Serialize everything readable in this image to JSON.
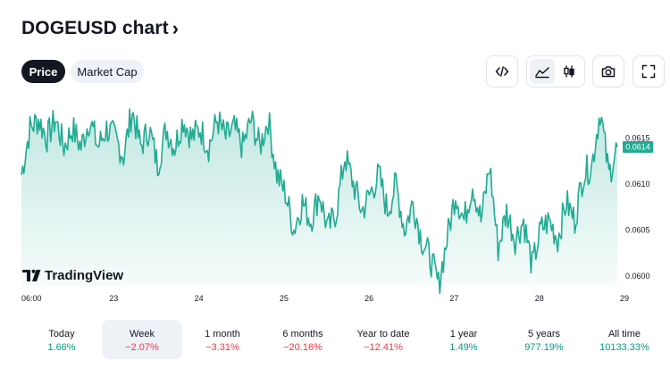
{
  "header": {
    "title": "DOGEUSD chart",
    "chevron": "›"
  },
  "tabs": [
    {
      "label": "Price",
      "active": true
    },
    {
      "label": "Market Cap",
      "active": false
    }
  ],
  "toolbar": {
    "embed_icon": "code-icon",
    "area_icon": "area-chart-icon",
    "candles_icon": "candlestick-icon",
    "camera_icon": "camera-icon",
    "fullscreen_icon": "fullscreen-icon"
  },
  "chart_data": {
    "type": "area",
    "title": "DOGEUSD",
    "x_ticks": [
      "06:00",
      "23",
      "24",
      "25",
      "26",
      "27",
      "28",
      "29"
    ],
    "y_ticks": [
      "0.0615",
      "0.0610",
      "0.0605",
      "0.0600"
    ],
    "ylim": [
      0.0599,
      0.0619
    ],
    "last_price": "0.0614",
    "last_value": 0.0614,
    "line_color": "#22ab94",
    "fill_color": "#22ab94",
    "series": [
      {
        "name": "DOGEUSD",
        "x": [
          0,
          0.1,
          0.2,
          0.3,
          0.4,
          0.5,
          0.6,
          0.7,
          0.8,
          0.9,
          1,
          1.1,
          1.2,
          1.3,
          1.4,
          1.5,
          1.6,
          1.7,
          1.8,
          1.9,
          2,
          2.1,
          2.2,
          2.3,
          2.4,
          2.5,
          2.6,
          2.7,
          2.8,
          2.9,
          3,
          3.1,
          3.2,
          3.3,
          3.4,
          3.5,
          3.6,
          3.7,
          3.8,
          3.9,
          4,
          4.1,
          4.2,
          4.3,
          4.4,
          4.5,
          4.6,
          4.7,
          4.8,
          4.9,
          5,
          5.1,
          5.2,
          5.3,
          5.4,
          5.5,
          5.6,
          5.7,
          5.8,
          5.9,
          6,
          6.1,
          6.2,
          6.3,
          6.4,
          6.5,
          6.6,
          6.7,
          6.8,
          6.9,
          7
        ],
        "values": [
          0.0611,
          0.0616,
          0.0617,
          0.0615,
          0.0617,
          0.0614,
          0.0616,
          0.0614,
          0.0617,
          0.0614,
          0.0616,
          0.0615,
          0.0613,
          0.0618,
          0.0614,
          0.0616,
          0.0612,
          0.0616,
          0.0614,
          0.0617,
          0.0615,
          0.0616,
          0.0614,
          0.0617,
          0.0615,
          0.0616,
          0.0614,
          0.0617,
          0.0614,
          0.0617,
          0.0611,
          0.0609,
          0.0605,
          0.0608,
          0.0606,
          0.0609,
          0.0605,
          0.0607,
          0.0613,
          0.061,
          0.0607,
          0.0609,
          0.0611,
          0.0607,
          0.061,
          0.0605,
          0.0608,
          0.0604,
          0.0602,
          0.0599,
          0.0604,
          0.0609,
          0.0606,
          0.061,
          0.0606,
          0.0612,
          0.0603,
          0.0607,
          0.0604,
          0.0606,
          0.0601,
          0.0605,
          0.0606,
          0.0604,
          0.0608,
          0.0606,
          0.0611,
          0.0612,
          0.0618,
          0.0611,
          0.0614
        ]
      }
    ]
  },
  "watermark": {
    "text": "TradingView",
    "logo_icon": "tradingview-logo-icon"
  },
  "periods": [
    {
      "label": "Today",
      "value": "1.66%",
      "trend": "pos",
      "active": false
    },
    {
      "label": "Week",
      "value": "−2.07%",
      "trend": "neg",
      "active": true
    },
    {
      "label": "1 month",
      "value": "−3.31%",
      "trend": "neg",
      "active": false
    },
    {
      "label": "6 months",
      "value": "−20.16%",
      "trend": "neg",
      "active": false
    },
    {
      "label": "Year to date",
      "value": "−12.41%",
      "trend": "neg",
      "active": false
    },
    {
      "label": "1 year",
      "value": "1.49%",
      "trend": "pos",
      "active": false
    },
    {
      "label": "5 years",
      "value": "977.19%",
      "trend": "pos",
      "active": false
    },
    {
      "label": "All time",
      "value": "10133.33%",
      "trend": "pos",
      "active": false
    }
  ]
}
